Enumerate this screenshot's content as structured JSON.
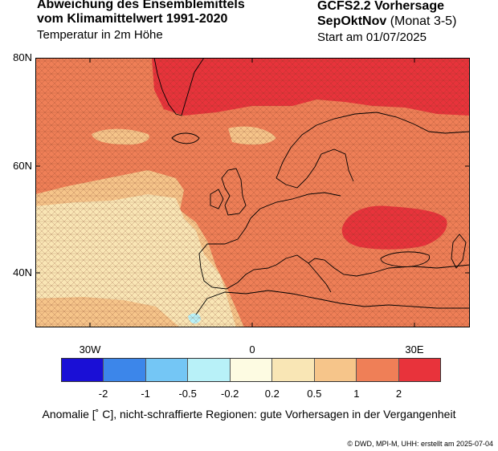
{
  "header": {
    "title_line1": "Abweichung des Ensemblemittels",
    "title_line2": "vom Klimamittelwert 1991-2020",
    "title_line3": "Temperatur in 2m Höhe",
    "model": "GCFS2.2 Vorhersage",
    "season_bold": "SepOktNov",
    "season_note": " (Monat 3-5)",
    "start": "Start am 01/07/2025"
  },
  "map": {
    "lat_labels": [
      "80N",
      "60N",
      "40N"
    ],
    "lon_labels": [
      "30W",
      "0",
      "30E"
    ],
    "coastline_color": "#000000",
    "hatch_meaning": "schraffiert"
  },
  "colorbar": {
    "colors": [
      "#1a0fd6",
      "#3c86ea",
      "#74c6f5",
      "#b8f1f8",
      "#fdfbe2",
      "#f9e6b5",
      "#f6c58a",
      "#ef7f57",
      "#e8333b"
    ],
    "tick_labels": [
      "-2",
      "-1",
      "-0.5",
      "-0.2",
      "0.2",
      "0.5",
      "1",
      "2"
    ]
  },
  "caption": "Anomalie [˚ C], nicht-schraffierte Regionen: gute Vorhersagen in der Vergangenheit",
  "credit": "© DWD, MPI-M, UHH: erstellt am 2025-07-04"
}
